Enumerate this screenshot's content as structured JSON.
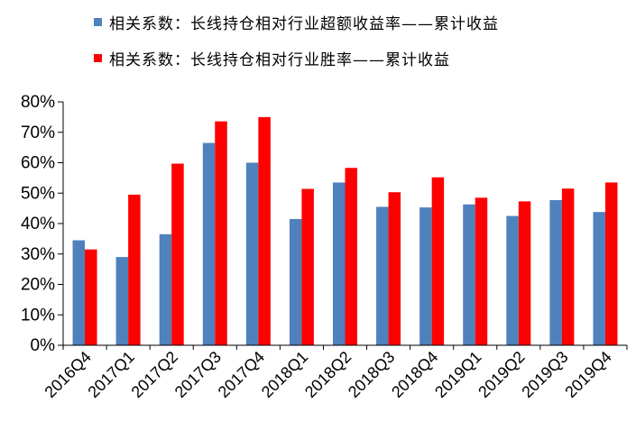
{
  "chart_data": {
    "type": "bar",
    "categories": [
      "2016Q4",
      "2017Q1",
      "2017Q2",
      "2017Q3",
      "2017Q4",
      "2018Q1",
      "2018Q2",
      "2018Q3",
      "2018Q4",
      "2019Q1",
      "2019Q2",
      "2019Q3",
      "2019Q4"
    ],
    "series": [
      {
        "name": "相关系数：长线持仓相对行业超额收益率——累计收益",
        "color": "#4f81bd",
        "values": [
          34.5,
          29.0,
          36.5,
          66.5,
          60.0,
          41.5,
          53.5,
          45.5,
          45.3,
          46.3,
          42.5,
          47.7,
          43.8
        ]
      },
      {
        "name": "相关系数：长线持仓相对行业胜率——累计收益",
        "color": "#ff0000",
        "values": [
          31.5,
          49.5,
          59.7,
          73.6,
          75.0,
          51.4,
          58.3,
          50.3,
          55.2,
          48.5,
          47.3,
          51.5,
          53.5
        ]
      }
    ],
    "yticks": [
      "0%",
      "10%",
      "20%",
      "30%",
      "40%",
      "50%",
      "60%",
      "70%",
      "80%"
    ],
    "ylim": [
      0,
      80
    ],
    "title": "",
    "xlabel": "",
    "ylabel": "",
    "legend_position": "top-left",
    "grid": false
  }
}
